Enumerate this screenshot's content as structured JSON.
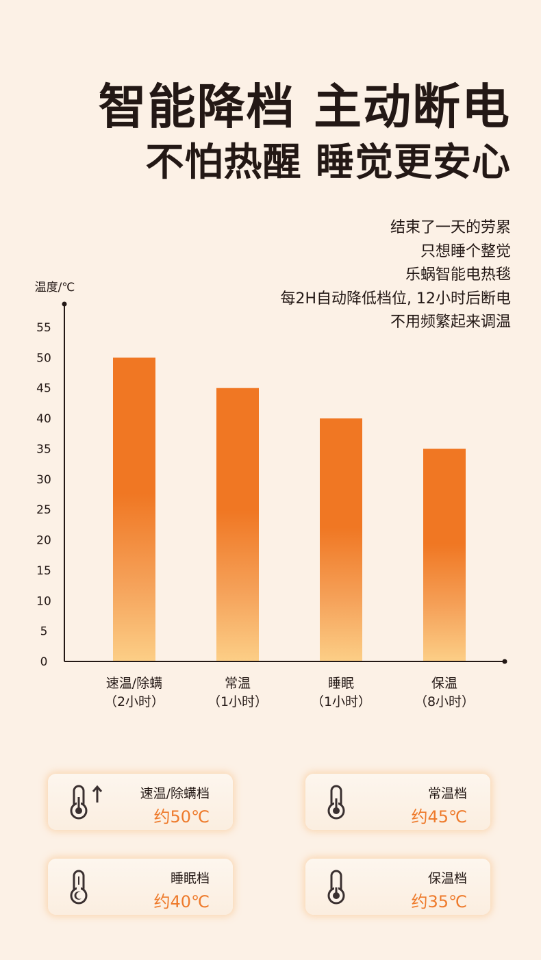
{
  "headline": {
    "line1": "智能降档 主动断电",
    "line2": "不怕热醒 睡觉更安心"
  },
  "description": [
    "结束了一天的劳累",
    "只想睡个整觉",
    "乐蜗智能电热毯",
    "每2H自动降低档位, 12小时后断电",
    "不用频繁起来调温"
  ],
  "chart_data": {
    "type": "bar",
    "ylabel": "温度/℃",
    "ylim": [
      0,
      55
    ],
    "yticks": [
      0,
      5,
      10,
      15,
      20,
      25,
      30,
      35,
      40,
      45,
      50,
      55
    ],
    "grid": false,
    "categories": [
      [
        "速温/除螨",
        "（2小时）"
      ],
      [
        "常温",
        "（1小时）"
      ],
      [
        "睡眠",
        "（1小时）"
      ],
      [
        "保温",
        "（8小时）"
      ]
    ],
    "values": [
      50,
      45,
      40,
      35
    ],
    "colors": {
      "top": "#f07723",
      "bottom": "#fcce86",
      "axis": "#231815"
    }
  },
  "modes": [
    {
      "name": "速温/除螨档",
      "temp": "约50℃",
      "icon": "thermometer-up-icon"
    },
    {
      "name": "常温档",
      "temp": "约45℃",
      "icon": "thermometer-icon"
    },
    {
      "name": "睡眠档",
      "temp": "约40℃",
      "icon": "thermometer-moon-icon"
    },
    {
      "name": "保温档",
      "temp": "约35℃",
      "icon": "thermometer-low-icon"
    }
  ]
}
